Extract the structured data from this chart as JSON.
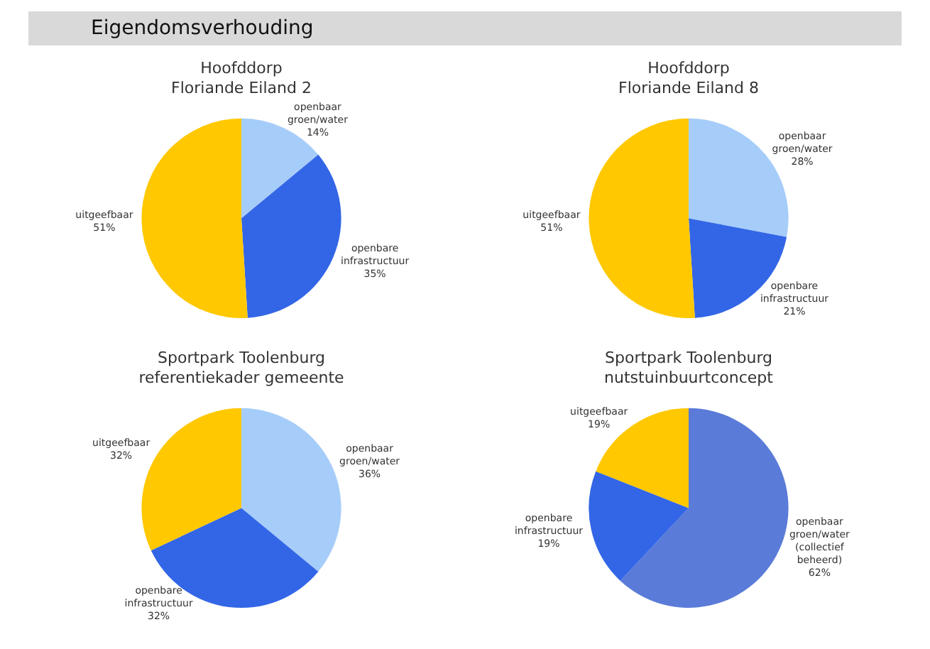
{
  "chart_data": [
    {
      "type": "other",
      "title": "Eigendomsverhouding"
    },
    {
      "type": "pie",
      "title": "Hoofddorp",
      "subtitle": "Floriande Eiland 2",
      "categories": [
        "openbaar groen/water",
        "openbare infrastructuur",
        "uitgeefbaar"
      ],
      "values": [
        14,
        35,
        51
      ],
      "value_labels": [
        "14%",
        "35%",
        "51%"
      ],
      "colors": [
        "#a6cdfa",
        "#3366e6",
        "#ffc800"
      ],
      "legend": false
    },
    {
      "type": "pie",
      "title": "Hoofddorp",
      "subtitle": "Floriande Eiland 8",
      "categories": [
        "openbaar groen/water",
        "openbare infrastructuur",
        "uitgeefbaar"
      ],
      "values": [
        28,
        21,
        51
      ],
      "value_labels": [
        "28%",
        "21%",
        "51%"
      ],
      "colors": [
        "#a6cdfa",
        "#3366e6",
        "#ffc800"
      ],
      "legend": false
    },
    {
      "type": "pie",
      "title": "Sportpark Toolenburg",
      "subtitle": "referentiekader gemeente",
      "categories": [
        "openbaar groen/water",
        "openbare infrastructuur",
        "uitgeefbaar"
      ],
      "values": [
        36,
        32,
        32
      ],
      "value_labels": [
        "36%",
        "32%",
        "32%"
      ],
      "colors": [
        "#a6cdfa",
        "#3366e6",
        "#ffc800"
      ],
      "legend": false
    },
    {
      "type": "pie",
      "title": "Sportpark Toolenburg",
      "subtitle": "nutstuinbuurtconcept",
      "categories": [
        "openbaar groen/water (collectief beheerd)",
        "openbare infrastructuur",
        "uitgeefbaar"
      ],
      "values": [
        62,
        19,
        19
      ],
      "value_labels": [
        "62%",
        "19%",
        "19%"
      ],
      "colors": [
        "#5a7bd8",
        "#3366e6",
        "#ffc800"
      ],
      "legend": false
    }
  ]
}
